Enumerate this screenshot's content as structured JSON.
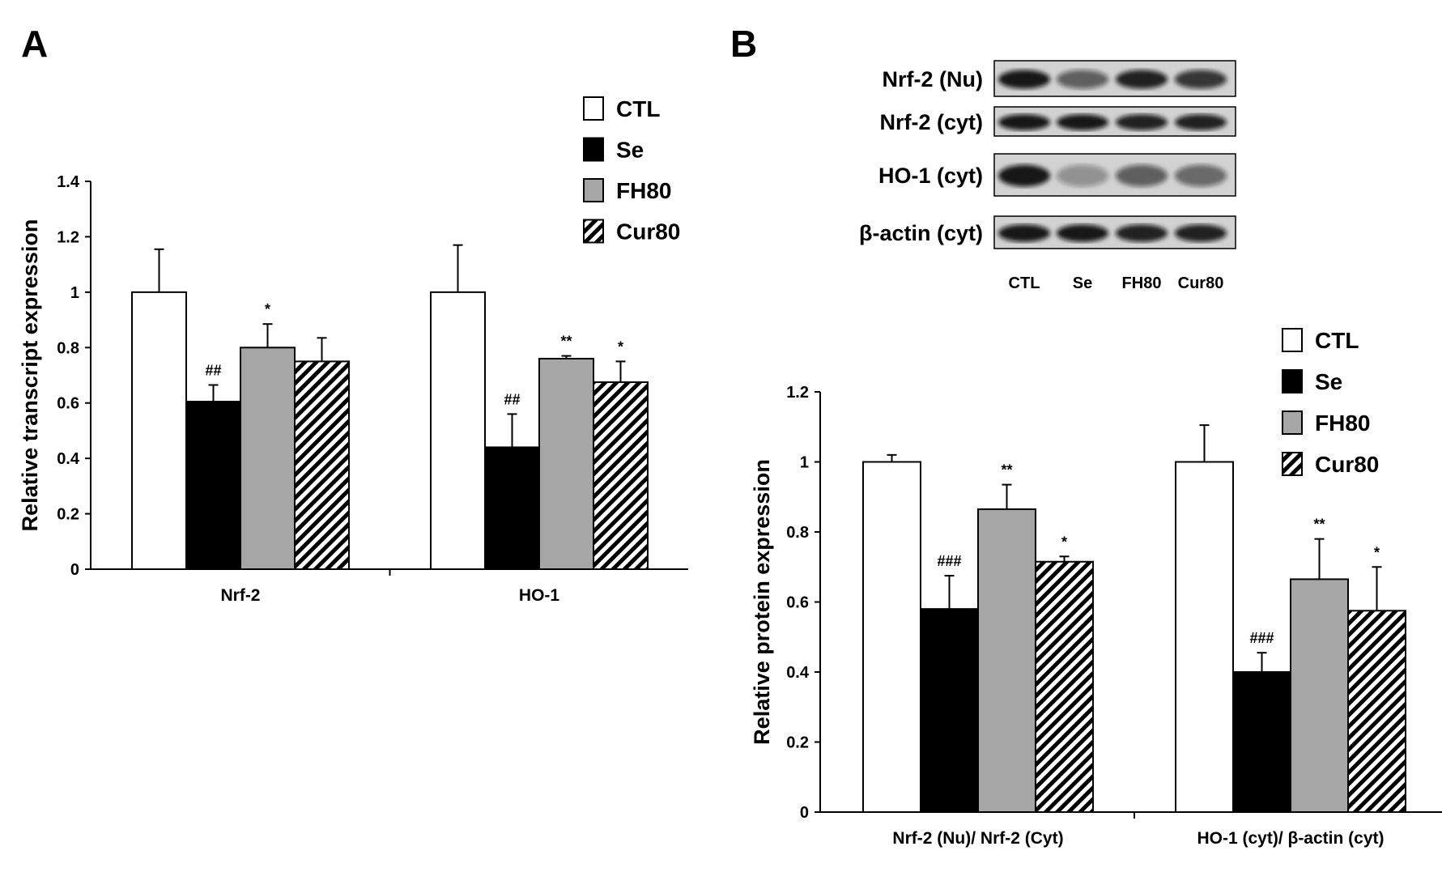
{
  "colors": {
    "CTL": "#ffffff",
    "Se": "#000000",
    "FH80": "#a6a6a6",
    "Cur80": "hatch",
    "blot_bg": "#d2d2d2",
    "band": "#111111"
  },
  "panelA": {
    "label": "A",
    "legend": [
      "CTL",
      "Se",
      "FH80",
      "Cur80"
    ]
  },
  "panelB": {
    "label": "B",
    "legend": [
      "CTL",
      "Se",
      "FH80",
      "Cur80"
    ],
    "blot": {
      "rows": [
        {
          "label": "Nrf-2 (Nu)",
          "intensities": [
            0.95,
            0.6,
            0.9,
            0.8
          ]
        },
        {
          "label": "Nrf-2 (cyt)",
          "intensities": [
            0.95,
            0.95,
            0.9,
            0.9
          ]
        },
        {
          "label": "HO-1 (cyt)",
          "intensities": [
            0.95,
            0.35,
            0.6,
            0.55
          ]
        },
        {
          "label": "β-actin (cyt)",
          "intensities": [
            0.95,
            0.95,
            0.9,
            0.9
          ]
        }
      ],
      "lanes": [
        "CTL",
        "Se",
        "FH80",
        "Cur80"
      ]
    }
  },
  "chart_data": [
    {
      "type": "bar",
      "panel": "A",
      "categories": [
        "Nrf-2",
        "HO-1"
      ],
      "series": [
        {
          "name": "CTL",
          "values": [
            1.0,
            1.0
          ],
          "errors": [
            0.155,
            0.17
          ],
          "marks": [
            "",
            ""
          ]
        },
        {
          "name": "Se",
          "values": [
            0.605,
            0.44
          ],
          "errors": [
            0.06,
            0.12
          ],
          "marks": [
            "##",
            "##"
          ]
        },
        {
          "name": "FH80",
          "values": [
            0.8,
            0.76
          ],
          "errors": [
            0.085,
            0.01
          ],
          "marks": [
            "*",
            "**"
          ]
        },
        {
          "name": "Cur80",
          "values": [
            0.75,
            0.675
          ],
          "errors": [
            0.085,
            0.075
          ],
          "marks": [
            "",
            "*"
          ]
        }
      ],
      "xlabel": "",
      "ylabel": "Relative transcript expression",
      "ylim": [
        0,
        1.4
      ],
      "yticks": [
        "0",
        "0.2",
        "0.4",
        "0.6",
        "0.8",
        "1",
        "1.2",
        "1.4"
      ],
      "grid": false,
      "legend_position": "top-right"
    },
    {
      "type": "bar",
      "panel": "B",
      "categories": [
        "Nrf-2 (Nu)/ Nrf-2 (Cyt)",
        "HO-1 (cyt)/ β-actin (cyt)"
      ],
      "series": [
        {
          "name": "CTL",
          "values": [
            1.0,
            1.0
          ],
          "errors": [
            0.02,
            0.105
          ],
          "marks": [
            "",
            ""
          ]
        },
        {
          "name": "Se",
          "values": [
            0.58,
            0.4
          ],
          "errors": [
            0.095,
            0.055
          ],
          "marks": [
            "###",
            "###"
          ]
        },
        {
          "name": "FH80",
          "values": [
            0.865,
            0.665
          ],
          "errors": [
            0.07,
            0.115
          ],
          "marks": [
            "**",
            "**"
          ]
        },
        {
          "name": "Cur80",
          "values": [
            0.715,
            0.575
          ],
          "errors": [
            0.015,
            0.125
          ],
          "marks": [
            "*",
            "*"
          ]
        }
      ],
      "xlabel": "",
      "ylabel": "Relative protein expression",
      "ylim": [
        0,
        1.2
      ],
      "yticks": [
        "0",
        "0.2",
        "0.4",
        "0.6",
        "0.8",
        "1",
        "1.2"
      ],
      "grid": false,
      "legend_position": "top-right"
    }
  ]
}
